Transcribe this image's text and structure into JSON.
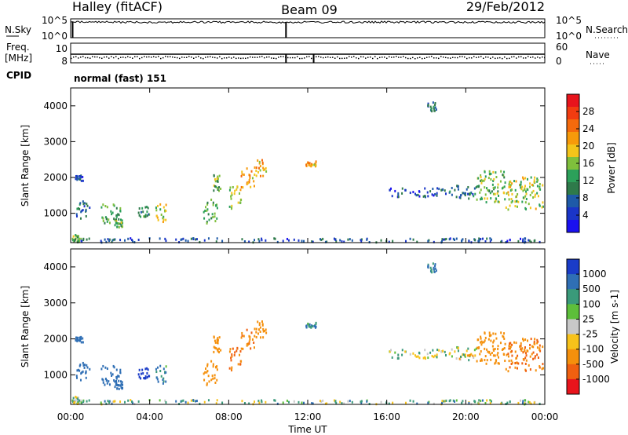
{
  "chart_data": {
    "type": "heatmap",
    "header": {
      "station": "Halley (fitACF)",
      "beam": "Beam 09",
      "date": "29/Feb/2012"
    },
    "top_panels": {
      "nsky_label": "N.Sky",
      "nsky_ticks": [
        "10^5",
        "10^0"
      ],
      "nsearch_label": "N.Search",
      "nsearch_ticks": [
        "10^5",
        "10^0"
      ],
      "freq_label": "Freq.",
      "freq_unit": "[MHz]",
      "freq_ticks": [
        "10",
        "8"
      ],
      "nave_label": "Nave",
      "nave_ticks": [
        "60",
        "0"
      ],
      "cpid_label": "CPID",
      "cpid_value": "normal (fast) 151"
    },
    "x_axis": {
      "label": "Time UT",
      "ticks": [
        "00:00",
        "04:00",
        "08:00",
        "12:00",
        "16:00",
        "20:00",
        "00:00"
      ],
      "range_hours": [
        0,
        24
      ]
    },
    "power_panel": {
      "ylabel": "Slant Range [km]",
      "yticks": [
        "4000",
        "3000",
        "2000",
        "1000"
      ],
      "ylim": [
        180,
        4500
      ],
      "colorbar_label": "Power [dB]",
      "colorbar_ticks": [
        "28",
        "24",
        "20",
        "16",
        "12",
        "8",
        "4"
      ],
      "colorbar_colors": [
        "#e8141c",
        "#f23c10",
        "#f56a0c",
        "#f79a0a",
        "#f3c41a",
        "#7fbf3c",
        "#2ca05a",
        "#2e7a4a",
        "#1e5aa8",
        "#1a35c8",
        "#1a10f0"
      ]
    },
    "velocity_panel": {
      "ylabel": "Slant Range [km]",
      "yticks": [
        "4000",
        "3000",
        "2000",
        "1000"
      ],
      "ylim": [
        180,
        4500
      ],
      "colorbar_label": "Velocity [m s-1]",
      "colorbar_ticks": [
        "1000",
        "500",
        "100",
        "25",
        "-25",
        "-100",
        "-500",
        "-1000"
      ],
      "colorbar_colors": [
        "#1a3cc8",
        "#2f6fb5",
        "#3a9a7a",
        "#5dbf3a",
        "#c8c8c8",
        "#f7c21a",
        "#f5900c",
        "#f06010",
        "#e8141c"
      ]
    },
    "echo_regions": [
      {
        "t": [
          0.0,
          0.5
        ],
        "r": [
          180,
          400
        ],
        "power": 14,
        "vel": 30
      },
      {
        "t": [
          0.2,
          1.0
        ],
        "r": [
          850,
          1350
        ],
        "power": 8,
        "vel": 200
      },
      {
        "t": [
          0.2,
          0.6
        ],
        "r": [
          1900,
          2050
        ],
        "power": 6,
        "vel": 400
      },
      {
        "t": [
          1.5,
          2.5
        ],
        "r": [
          700,
          1250
        ],
        "power": 12,
        "vel": 400
      },
      {
        "t": [
          2.2,
          2.6
        ],
        "r": [
          600,
          850
        ],
        "power": 14,
        "vel": 300
      },
      {
        "t": [
          3.4,
          4.0
        ],
        "r": [
          900,
          1200
        ],
        "power": 10,
        "vel": 600
      },
      {
        "t": [
          4.2,
          4.8
        ],
        "r": [
          750,
          1250
        ],
        "power": 16,
        "vel": 100
      },
      {
        "t": [
          6.7,
          7.4
        ],
        "r": [
          700,
          1400
        ],
        "power": 12,
        "vel": -400
      },
      {
        "t": [
          7.2,
          7.6
        ],
        "r": [
          1600,
          2100
        ],
        "power": 14,
        "vel": -300
      },
      {
        "t": [
          8.0,
          8.6
        ],
        "r": [
          1100,
          1800
        ],
        "power": 16,
        "vel": -500
      },
      {
        "t": [
          8.6,
          9.3
        ],
        "r": [
          1700,
          2300
        ],
        "power": 20,
        "vel": -500
      },
      {
        "t": [
          9.3,
          9.9
        ],
        "r": [
          2000,
          2500
        ],
        "power": 20,
        "vel": -400
      },
      {
        "t": [
          11.8,
          12.4
        ],
        "r": [
          2300,
          2450
        ],
        "power": 20,
        "vel": 100
      },
      {
        "t": [
          16.0,
          19.0
        ],
        "r": [
          1450,
          1700
        ],
        "power": 6,
        "vel": 0
      },
      {
        "t": [
          18.0,
          18.5
        ],
        "r": [
          3850,
          4100
        ],
        "power": 8,
        "vel": 150
      },
      {
        "t": [
          19.0,
          20.5
        ],
        "r": [
          1400,
          1800
        ],
        "power": 8,
        "vel": -30
      },
      {
        "t": [
          20.5,
          22.0
        ],
        "r": [
          1300,
          2200
        ],
        "power": 14,
        "vel": -400
      },
      {
        "t": [
          22.0,
          23.9
        ],
        "r": [
          1100,
          2000
        ],
        "power": 16,
        "vel": -500
      },
      {
        "t": [
          0.0,
          24.0
        ],
        "r": [
          180,
          300
        ],
        "power": 6,
        "vel": 30
      }
    ]
  }
}
